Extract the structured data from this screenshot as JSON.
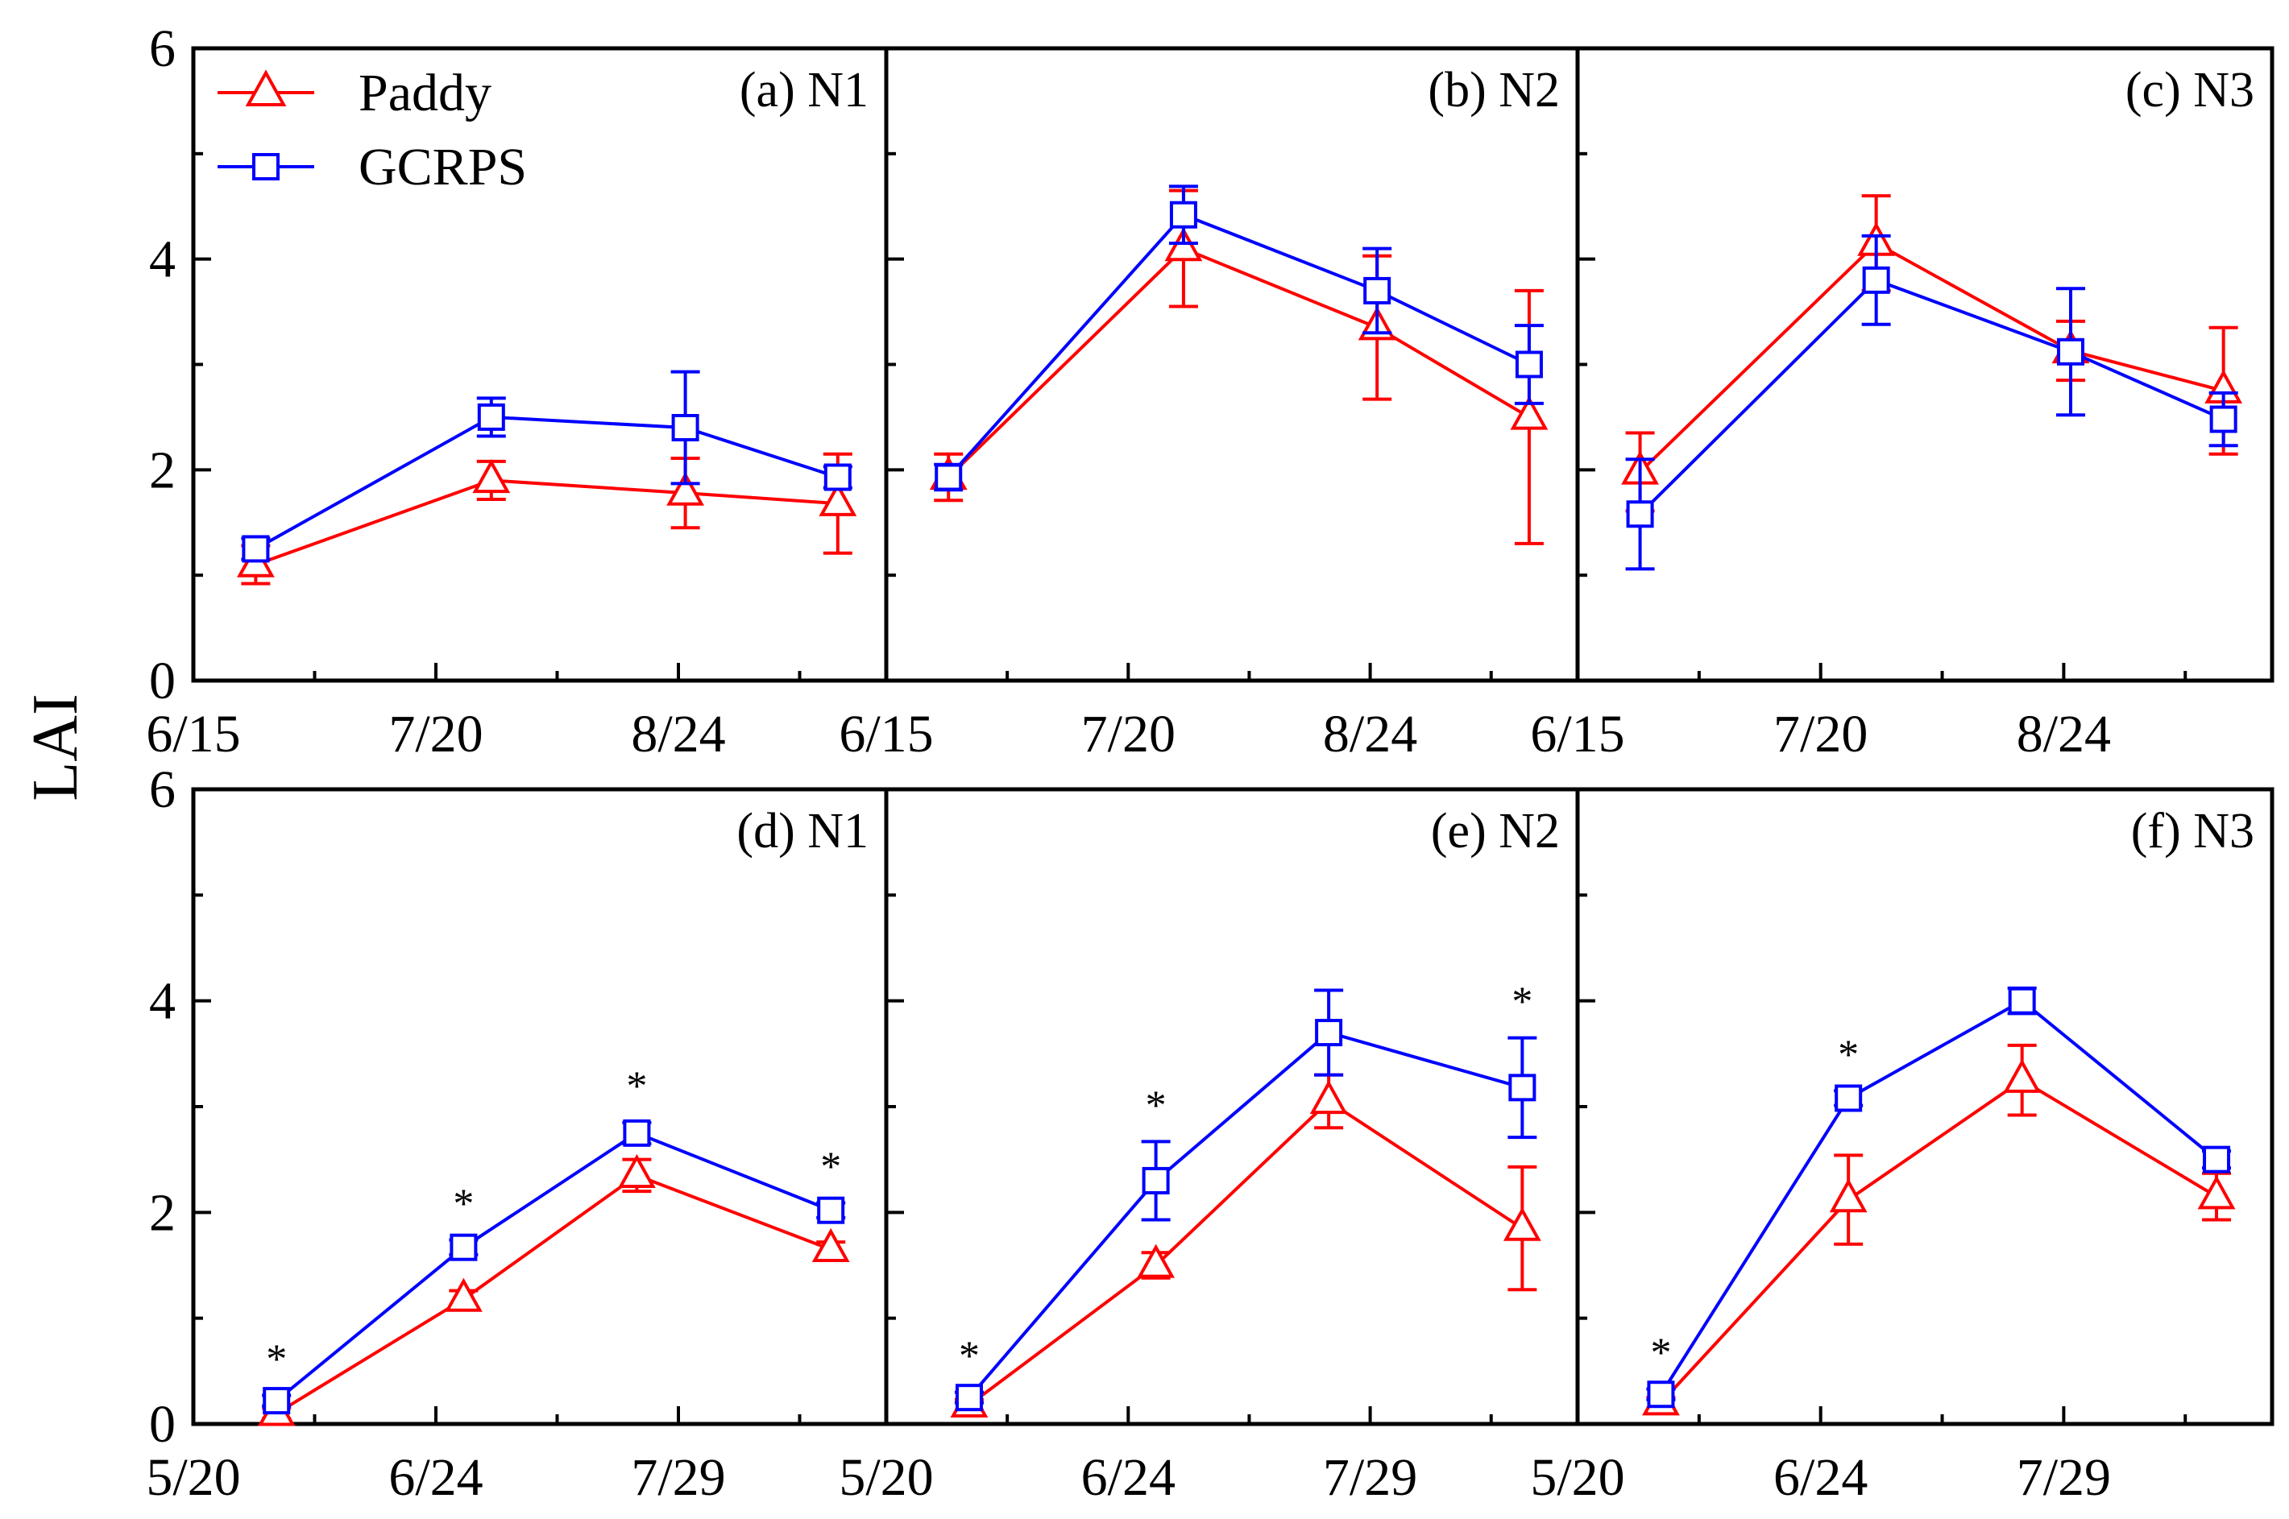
{
  "colors": {
    "paddy": "#ff0000",
    "gcrps": "#0000ff",
    "axis": "#000000"
  },
  "chart_data": {
    "type": "line",
    "ylabel": "LAI",
    "ylim": [
      0,
      6
    ],
    "yticks": [
      0,
      2,
      4,
      6
    ],
    "legend": [
      {
        "name": "Paddy",
        "marker": "triangle"
      },
      {
        "name": "GCRPS",
        "marker": "square"
      }
    ],
    "legend_position": "top-left of panel (a)",
    "rows": [
      {
        "x_ticks": [
          "6/15",
          "7/20",
          "8/24"
        ],
        "x_tick_days": [
          0,
          35,
          70
        ],
        "xlim_days": [
          0,
          100
        ],
        "panels": [
          {
            "title": "(a) N1",
            "x_days": [
              9,
              43,
              71,
              93
            ],
            "series": [
              {
                "name": "Paddy",
                "values": [
                  1.1,
                  1.9,
                  1.78,
                  1.68
                ],
                "errors": [
                  0.18,
                  0.18,
                  0.33,
                  0.47
                ]
              },
              {
                "name": "GCRPS",
                "values": [
                  1.25,
                  2.5,
                  2.4,
                  1.93
                ],
                "errors": [
                  0.1,
                  0.18,
                  0.53,
                  0.1
                ]
              }
            ],
            "significant": []
          },
          {
            "title": "(b) N2",
            "x_days": [
              9,
              43,
              71,
              93
            ],
            "series": [
              {
                "name": "Paddy",
                "values": [
                  1.93,
                  4.1,
                  3.35,
                  2.5
                ],
                "errors": [
                  0.22,
                  0.55,
                  0.68,
                  1.2
                ]
              },
              {
                "name": "GCRPS",
                "values": [
                  1.93,
                  4.42,
                  3.7,
                  3.0
                ],
                "errors": [
                  0.12,
                  0.27,
                  0.4,
                  0.37
                ]
              }
            ],
            "significant": []
          },
          {
            "title": "(c) N3",
            "x_days": [
              9,
              43,
              71,
              93
            ],
            "series": [
              {
                "name": "Paddy",
                "values": [
                  1.98,
                  4.15,
                  3.13,
                  2.75
                ],
                "errors": [
                  0.37,
                  0.45,
                  0.28,
                  0.6
                ]
              },
              {
                "name": "GCRPS",
                "values": [
                  1.58,
                  3.8,
                  3.12,
                  2.48
                ],
                "errors": [
                  0.52,
                  0.42,
                  0.6,
                  0.25
                ]
              }
            ],
            "significant": []
          }
        ]
      },
      {
        "x_ticks": [
          "5/20",
          "6/24",
          "7/29"
        ],
        "x_tick_days": [
          0,
          35,
          70
        ],
        "xlim_days": [
          0,
          100
        ],
        "panels": [
          {
            "title": "(d) N1",
            "x_days": [
              12,
              39,
              64,
              92
            ],
            "series": [
              {
                "name": "Paddy",
                "values": [
                  0.1,
                  1.18,
                  2.35,
                  1.65
                ],
                "errors": [
                  0.05,
                  0.08,
                  0.15,
                  0.07
                ]
              },
              {
                "name": "GCRPS",
                "values": [
                  0.22,
                  1.67,
                  2.75,
                  2.02
                ],
                "errors": [
                  0.05,
                  0.07,
                  0.1,
                  0.07
                ]
              }
            ],
            "significant": [
              0,
              1,
              2,
              3
            ]
          },
          {
            "title": "(e) N2",
            "x_days": [
              12,
              39,
              64,
              92
            ],
            "series": [
              {
                "name": "Paddy",
                "values": [
                  0.18,
                  1.5,
                  3.05,
                  1.85
                ],
                "errors": [
                  0.05,
                  0.12,
                  0.25,
                  0.58
                ]
              },
              {
                "name": "GCRPS",
                "values": [
                  0.25,
                  2.3,
                  3.7,
                  3.18
                ],
                "errors": [
                  0.05,
                  0.37,
                  0.4,
                  0.47
                ]
              }
            ],
            "significant": [
              0,
              1,
              3
            ]
          },
          {
            "title": "(f) N3",
            "x_days": [
              12,
              39,
              64,
              92
            ],
            "series": [
              {
                "name": "Paddy",
                "values": [
                  0.2,
                  2.12,
                  3.25,
                  2.15
                ],
                "errors": [
                  0.05,
                  0.42,
                  0.33,
                  0.22
                ]
              },
              {
                "name": "GCRPS",
                "values": [
                  0.28,
                  3.08,
                  4.0,
                  2.5
                ],
                "errors": [
                  0.05,
                  0.07,
                  0.12,
                  0.08
                ]
              }
            ],
            "significant": [
              0,
              1
            ]
          }
        ]
      }
    ],
    "significance_marker": "*"
  }
}
